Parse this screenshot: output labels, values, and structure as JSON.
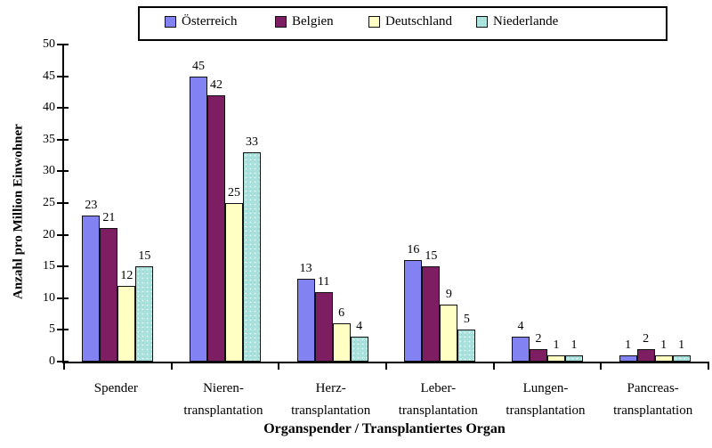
{
  "chart_data": {
    "type": "bar",
    "title": "",
    "xlabel": "Organspender / Transplantiertes Organ",
    "ylabel": "Anzahl pro Million Einwohner",
    "ylim": [
      0,
      50
    ],
    "ytick_step": 5,
    "grid": false,
    "legend_position": "top",
    "value_labels": true,
    "categories": [
      {
        "lines": [
          "Spender"
        ]
      },
      {
        "lines": [
          "Nieren-",
          "transplantation"
        ]
      },
      {
        "lines": [
          "Herz-",
          "transplantation"
        ]
      },
      {
        "lines": [
          "Leber-",
          "transplantation"
        ]
      },
      {
        "lines": [
          "Lungen-",
          "transplantation"
        ]
      },
      {
        "lines": [
          "Pancreas-",
          "transplantation"
        ]
      }
    ],
    "series": [
      {
        "name": "Österreich",
        "color": "#8282F2",
        "fill_pattern": "solid",
        "values": [
          23,
          45,
          13,
          16,
          4,
          1
        ]
      },
      {
        "name": "Belgien",
        "color": "#7D1E63",
        "fill_pattern": "solid",
        "values": [
          21,
          42,
          11,
          15,
          2,
          2
        ]
      },
      {
        "name": "Deutschland",
        "color": "#FFFFC4",
        "fill_pattern": "solid",
        "values": [
          12,
          25,
          6,
          9,
          1,
          1
        ]
      },
      {
        "name": "Niederlande",
        "color": "#A9E1DD",
        "fill_pattern": "speckled",
        "values": [
          15,
          33,
          4,
          5,
          1,
          1
        ]
      }
    ]
  },
  "colors": {
    "background": "#FFFFFF",
    "axis": "#000000",
    "bar_border": "#111111",
    "text": "#000000"
  }
}
